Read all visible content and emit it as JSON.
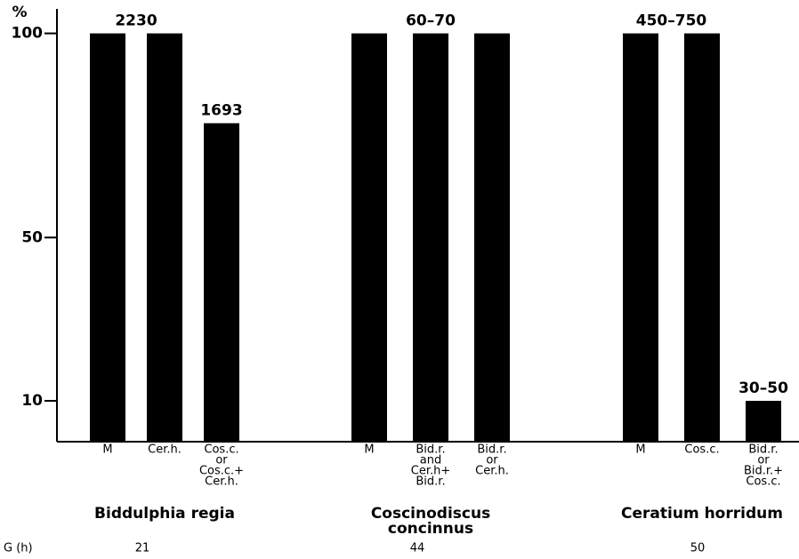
{
  "chart_data": {
    "type": "bar",
    "ylabel": "%",
    "ylim": [
      0,
      106
    ],
    "yticks": [
      10,
      50,
      100
    ],
    "color": "#000000",
    "row_label": "G (h)",
    "groups": [
      {
        "name": [
          "Biddulphia regia"
        ],
        "g_h": 21,
        "bars": [
          {
            "category": [
              "M"
            ],
            "value": 100
          },
          {
            "category": [
              "Cer.h."
            ],
            "value": 100
          },
          {
            "category": [
              "Cos.c.",
              "or",
              "Cos.c.+",
              "Cer.h."
            ],
            "value": 78
          }
        ],
        "annotations": [
          {
            "text": "2230",
            "over": [
              0,
              1
            ]
          },
          {
            "text": "1693",
            "over": [
              2
            ]
          }
        ]
      },
      {
        "name": [
          "Coscinodiscus",
          "concinnus"
        ],
        "g_h": 44,
        "bars": [
          {
            "category": [
              "M"
            ],
            "value": 100
          },
          {
            "category": [
              "Bid.r.",
              "and",
              "Cer.h+",
              "Bid.r."
            ],
            "value": 100
          },
          {
            "category": [
              "Bid.r.",
              "or",
              "Cer.h."
            ],
            "value": 100
          }
        ],
        "annotations": [
          {
            "text": "60–70",
            "over": [
              1
            ]
          }
        ]
      },
      {
        "name": [
          "Ceratium horridum"
        ],
        "g_h": 50,
        "bars": [
          {
            "category": [
              "M"
            ],
            "value": 100
          },
          {
            "category": [
              "Cos.c."
            ],
            "value": 100
          },
          {
            "category": [
              "Bid.r.",
              "or",
              "Bid.r.+",
              "Cos.c."
            ],
            "value": 10
          }
        ],
        "annotations": [
          {
            "text": "450–750",
            "over": [
              0,
              1
            ]
          },
          {
            "text": "30–50",
            "over": [
              2
            ]
          }
        ]
      }
    ]
  }
}
